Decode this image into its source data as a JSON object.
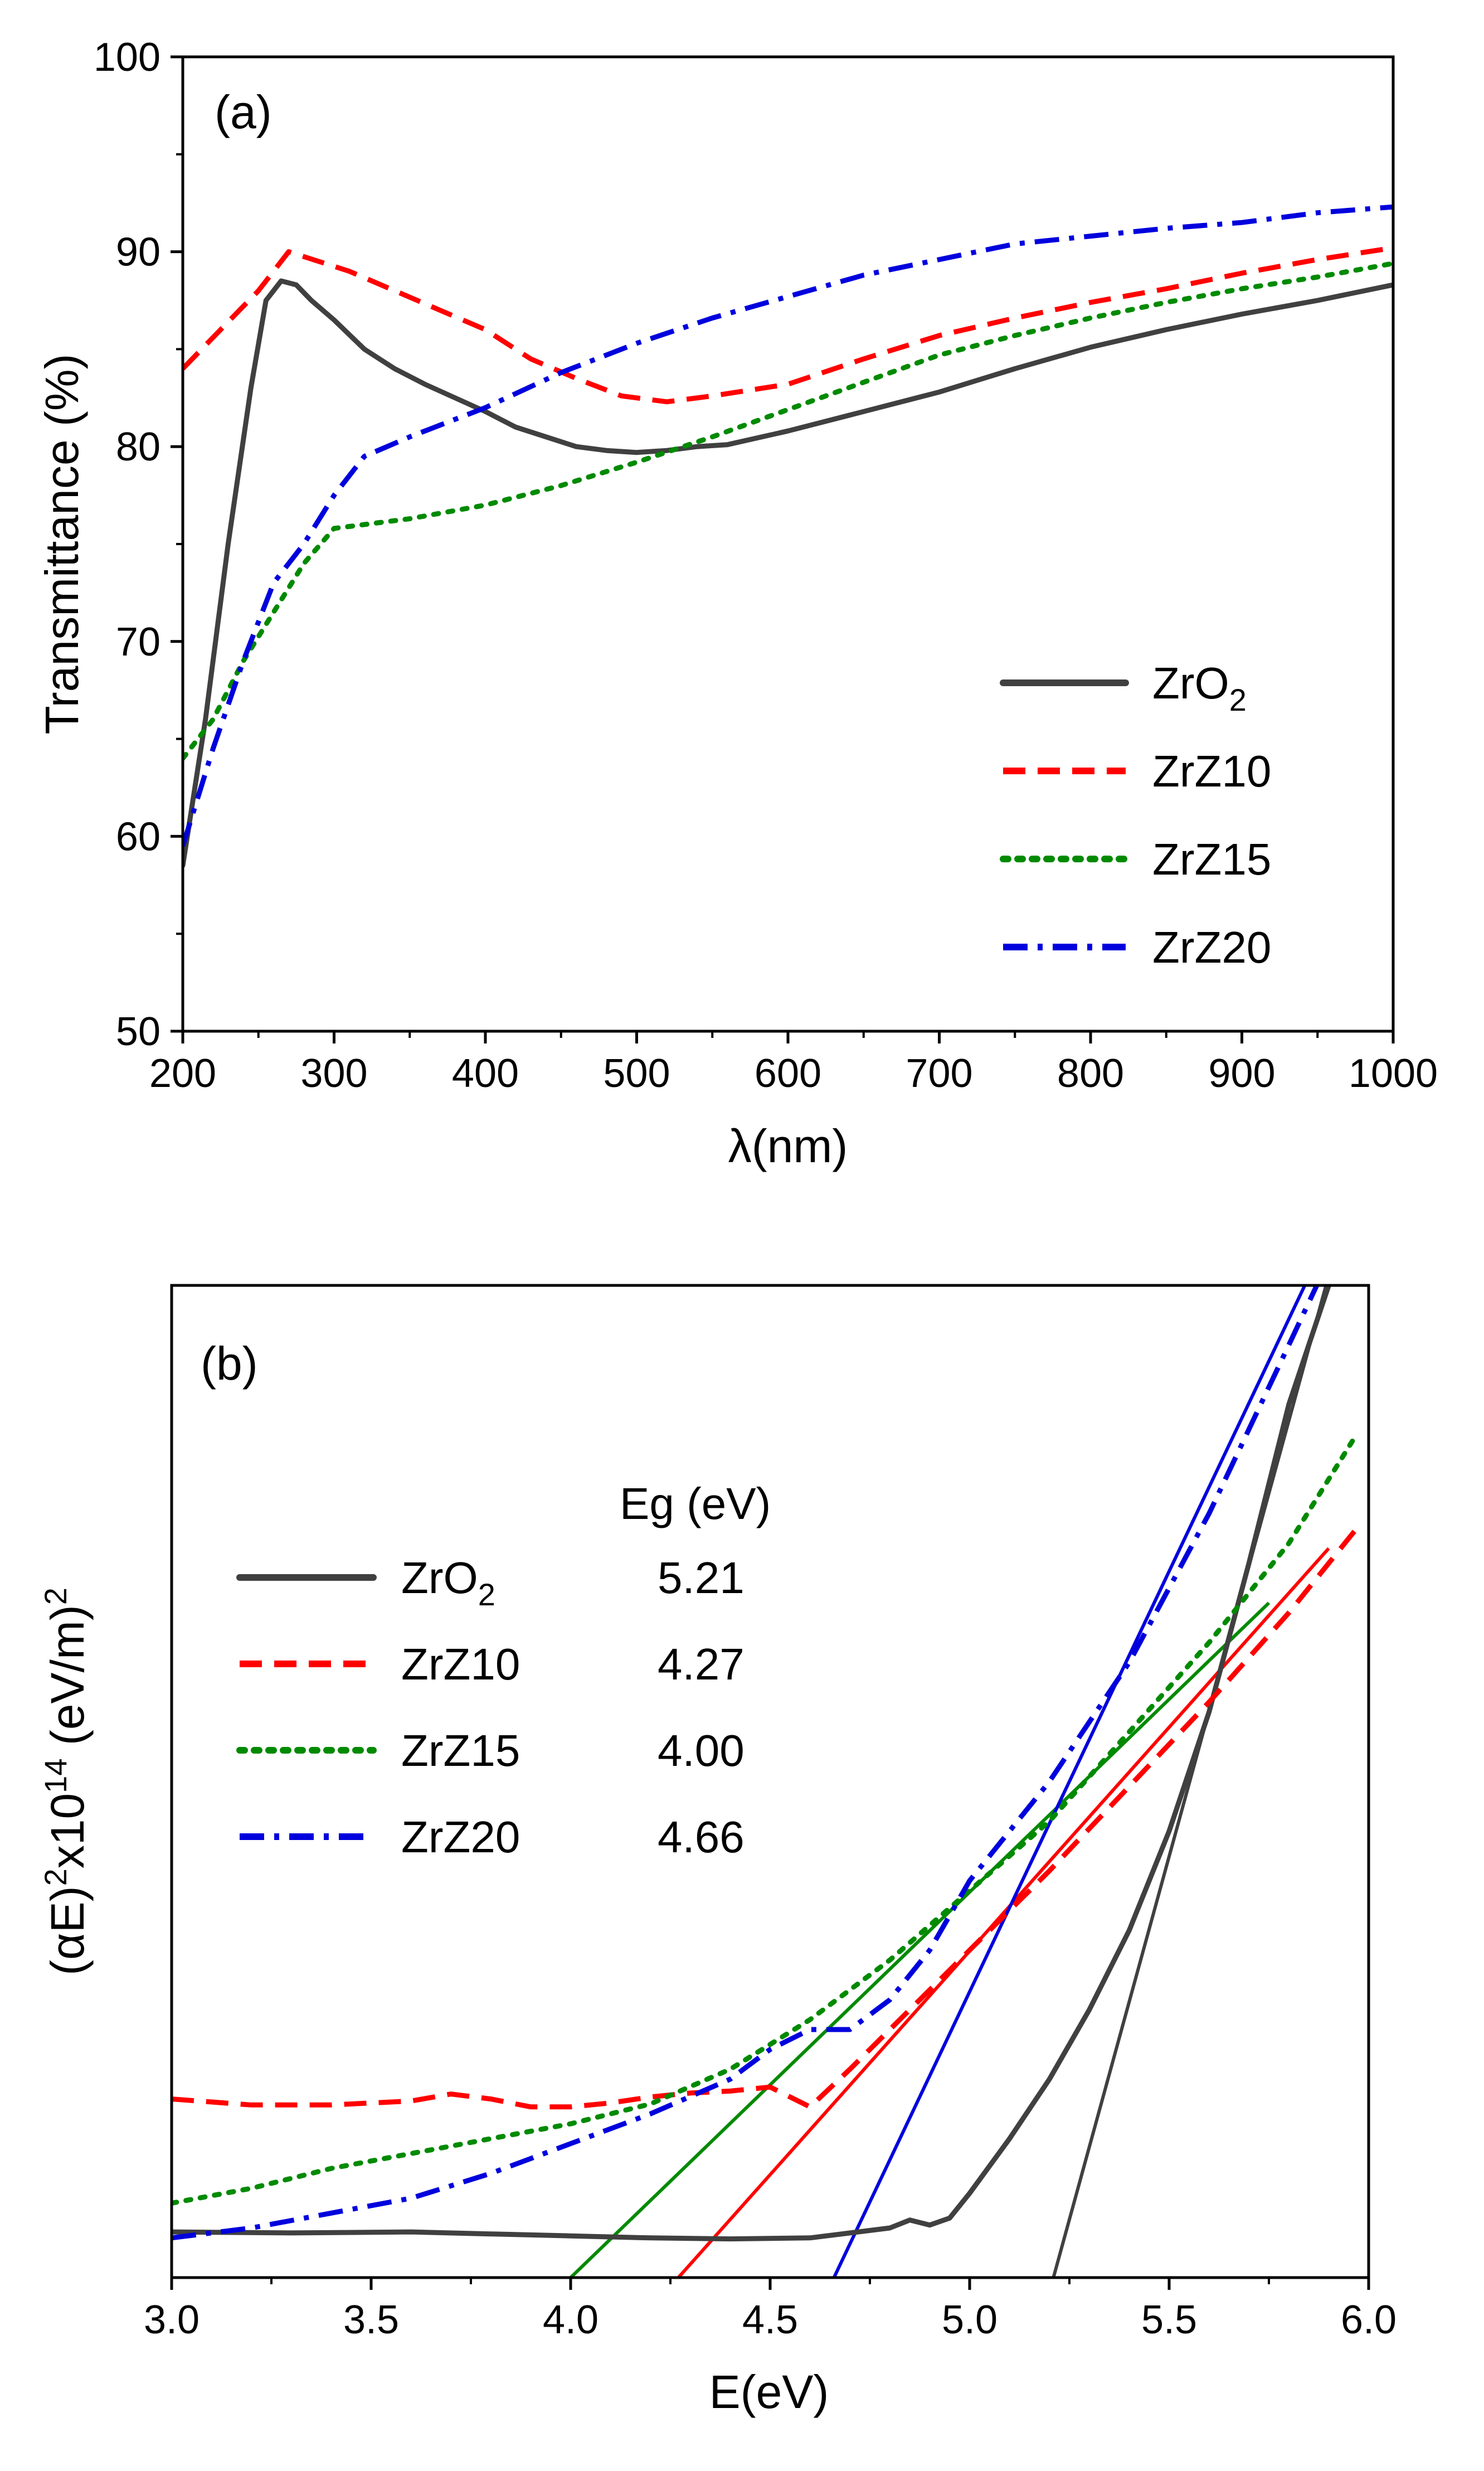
{
  "chart_data": [
    {
      "type": "line",
      "panel_label": "(a)",
      "xlabel": "λ(nm)",
      "ylabel": "Transmittance (%)",
      "xlim": [
        200,
        1000
      ],
      "ylim": [
        50,
        100
      ],
      "xticks": [
        "200",
        "300",
        "400",
        "500",
        "600",
        "700",
        "800",
        "900",
        "1000"
      ],
      "yticks": [
        "50",
        "60",
        "70",
        "80",
        "90",
        "100"
      ],
      "legend_position": "lower-right",
      "series": [
        {
          "name": "ZrO2",
          "label_main": "ZrO",
          "label_sub": "2",
          "color": "#404040",
          "style": "solid",
          "x": [
            200,
            215,
            230,
            245,
            255,
            265,
            275,
            285,
            300,
            320,
            340,
            360,
            380,
            400,
            420,
            440,
            460,
            480,
            500,
            520,
            540,
            560,
            600,
            650,
            700,
            750,
            800,
            850,
            900,
            950,
            1000
          ],
          "y": [
            58.5,
            66,
            75,
            83,
            87.5,
            88.5,
            88.3,
            87.5,
            86.5,
            85,
            84,
            83.2,
            82.5,
            81.8,
            81,
            80.5,
            80,
            79.8,
            79.7,
            79.8,
            80,
            80.1,
            80.8,
            81.8,
            82.8,
            84,
            85.1,
            86,
            86.8,
            87.5,
            88.3
          ]
        },
        {
          "name": "ZrZ10",
          "label_main": "ZrZ10",
          "label_sub": "",
          "color": "#ff0000",
          "style": "dash",
          "x": [
            200,
            225,
            250,
            270,
            290,
            310,
            340,
            370,
            400,
            430,
            460,
            490,
            520,
            550,
            600,
            650,
            700,
            750,
            800,
            850,
            900,
            950,
            1000
          ],
          "y": [
            84,
            86,
            88,
            90,
            89.5,
            89,
            88,
            87,
            86,
            84.5,
            83.5,
            82.6,
            82.3,
            82.6,
            83.2,
            84.5,
            85.7,
            86.6,
            87.4,
            88.1,
            88.9,
            89.6,
            90.2
          ]
        },
        {
          "name": "ZrZ15",
          "label_main": "ZrZ15",
          "label_sub": "",
          "color": "#008a00",
          "style": "dot",
          "x": [
            200,
            220,
            240,
            260,
            280,
            300,
            320,
            350,
            400,
            450,
            500,
            550,
            600,
            650,
            700,
            750,
            800,
            850,
            900,
            950,
            1000
          ],
          "y": [
            64,
            66,
            69,
            71.5,
            74,
            75.8,
            76,
            76.3,
            77,
            78,
            79.2,
            80.5,
            81.9,
            83.3,
            84.7,
            85.7,
            86.6,
            87.4,
            88.1,
            88.7,
            89.4
          ]
        },
        {
          "name": "ZrZ20",
          "label_main": "ZrZ20",
          "label_sub": "",
          "color": "#0000dd",
          "style": "dashdot",
          "x": [
            200,
            220,
            240,
            260,
            280,
            300,
            320,
            350,
            400,
            450,
            500,
            550,
            600,
            650,
            700,
            750,
            800,
            850,
            900,
            950,
            1000
          ],
          "y": [
            59.5,
            64.5,
            69,
            73,
            75,
            77.5,
            79.5,
            80.5,
            82,
            83.8,
            85.3,
            86.6,
            87.7,
            88.8,
            89.6,
            90.4,
            90.8,
            91.2,
            91.5,
            92,
            92.3
          ]
        }
      ]
    },
    {
      "type": "line",
      "panel_label": "(b)",
      "xlabel": "E(eV)",
      "ylabel_parts": [
        "(αE)",
        "2",
        "x10",
        "14",
        " (eV/m)",
        "2"
      ],
      "xlim": [
        3.0,
        6.0
      ],
      "ylim": [
        0,
        100
      ],
      "xticks": [
        "3.0",
        "3.5",
        "4.0",
        "4.5",
        "5.0",
        "5.5",
        "6.0"
      ],
      "yticks": [],
      "legend_position": "upper-left",
      "eg_header": "Eg (eV)",
      "series": [
        {
          "name": "ZrO2",
          "label_main": "ZrO",
          "label_sub": "2",
          "eg": "5.21",
          "color": "#404040",
          "style": "solid",
          "x": [
            3.0,
            3.3,
            3.6,
            3.8,
            4.0,
            4.2,
            4.4,
            4.6,
            4.8,
            4.85,
            4.9,
            4.95,
            5.0,
            5.1,
            5.2,
            5.3,
            5.4,
            5.5,
            5.6,
            5.7,
            5.8,
            5.9
          ],
          "y": [
            4.6,
            4.5,
            4.6,
            4.4,
            4.2,
            4.0,
            3.9,
            4.0,
            5.0,
            5.8,
            5.3,
            6.0,
            8.5,
            14,
            20,
            27,
            35,
            45,
            57,
            72,
            88,
            100
          ],
          "fit": {
            "x": [
              5.21,
              5.9
            ],
            "y": [
              0,
              101
            ]
          }
        },
        {
          "name": "ZrZ10",
          "label_main": "ZrZ10",
          "label_sub": "",
          "eg": "4.27",
          "color": "#ff0000",
          "style": "dash",
          "x": [
            3.0,
            3.2,
            3.4,
            3.6,
            3.7,
            3.8,
            3.9,
            4.0,
            4.1,
            4.2,
            4.3,
            4.4,
            4.5,
            4.6,
            4.7,
            4.8,
            4.9,
            5.0,
            5.2,
            5.4,
            5.6,
            5.8,
            5.97
          ],
          "y": [
            18,
            17.4,
            17.4,
            17.8,
            18.5,
            18,
            17.2,
            17.2,
            17.6,
            18.2,
            18.6,
            18.8,
            19.2,
            17.2,
            21,
            25,
            29,
            33,
            41,
            49.5,
            58,
            67,
            75.5
          ],
          "fit": {
            "x": [
              4.27,
              5.9
            ],
            "y": [
              0,
              73.5
            ]
          }
        },
        {
          "name": "ZrZ15",
          "label_main": "ZrZ15",
          "label_sub": "",
          "eg": "4.00",
          "color": "#008a00",
          "style": "dot",
          "x": [
            3.0,
            3.2,
            3.4,
            3.6,
            3.8,
            4.0,
            4.2,
            4.4,
            4.6,
            4.8,
            5.0,
            5.2,
            5.4,
            5.6,
            5.8,
            5.97
          ],
          "y": [
            7.5,
            9,
            11,
            12.5,
            14,
            15.5,
            17.5,
            21,
            26,
            32,
            39,
            46,
            55,
            64,
            74,
            85
          ],
          "fit": {
            "x": [
              4.0,
              5.75
            ],
            "y": [
              0,
              68
            ]
          }
        },
        {
          "name": "ZrZ20",
          "label_main": "ZrZ20",
          "label_sub": "",
          "eg": "4.66",
          "color": "#0000dd",
          "style": "dashdot",
          "x": [
            3.0,
            3.2,
            3.4,
            3.6,
            3.8,
            4.0,
            4.2,
            4.4,
            4.5,
            4.6,
            4.7,
            4.8,
            4.9,
            5.0,
            5.2,
            5.4,
            5.6,
            5.8,
            5.87
          ],
          "y": [
            4,
            5,
            6.5,
            8,
            10.5,
            13.5,
            16.5,
            20,
            23,
            25,
            25,
            28,
            33,
            40,
            50,
            62,
            77,
            94,
            100
          ],
          "fit": {
            "x": [
              4.66,
              5.84
            ],
            "y": [
              0,
              100
            ]
          }
        }
      ]
    }
  ]
}
